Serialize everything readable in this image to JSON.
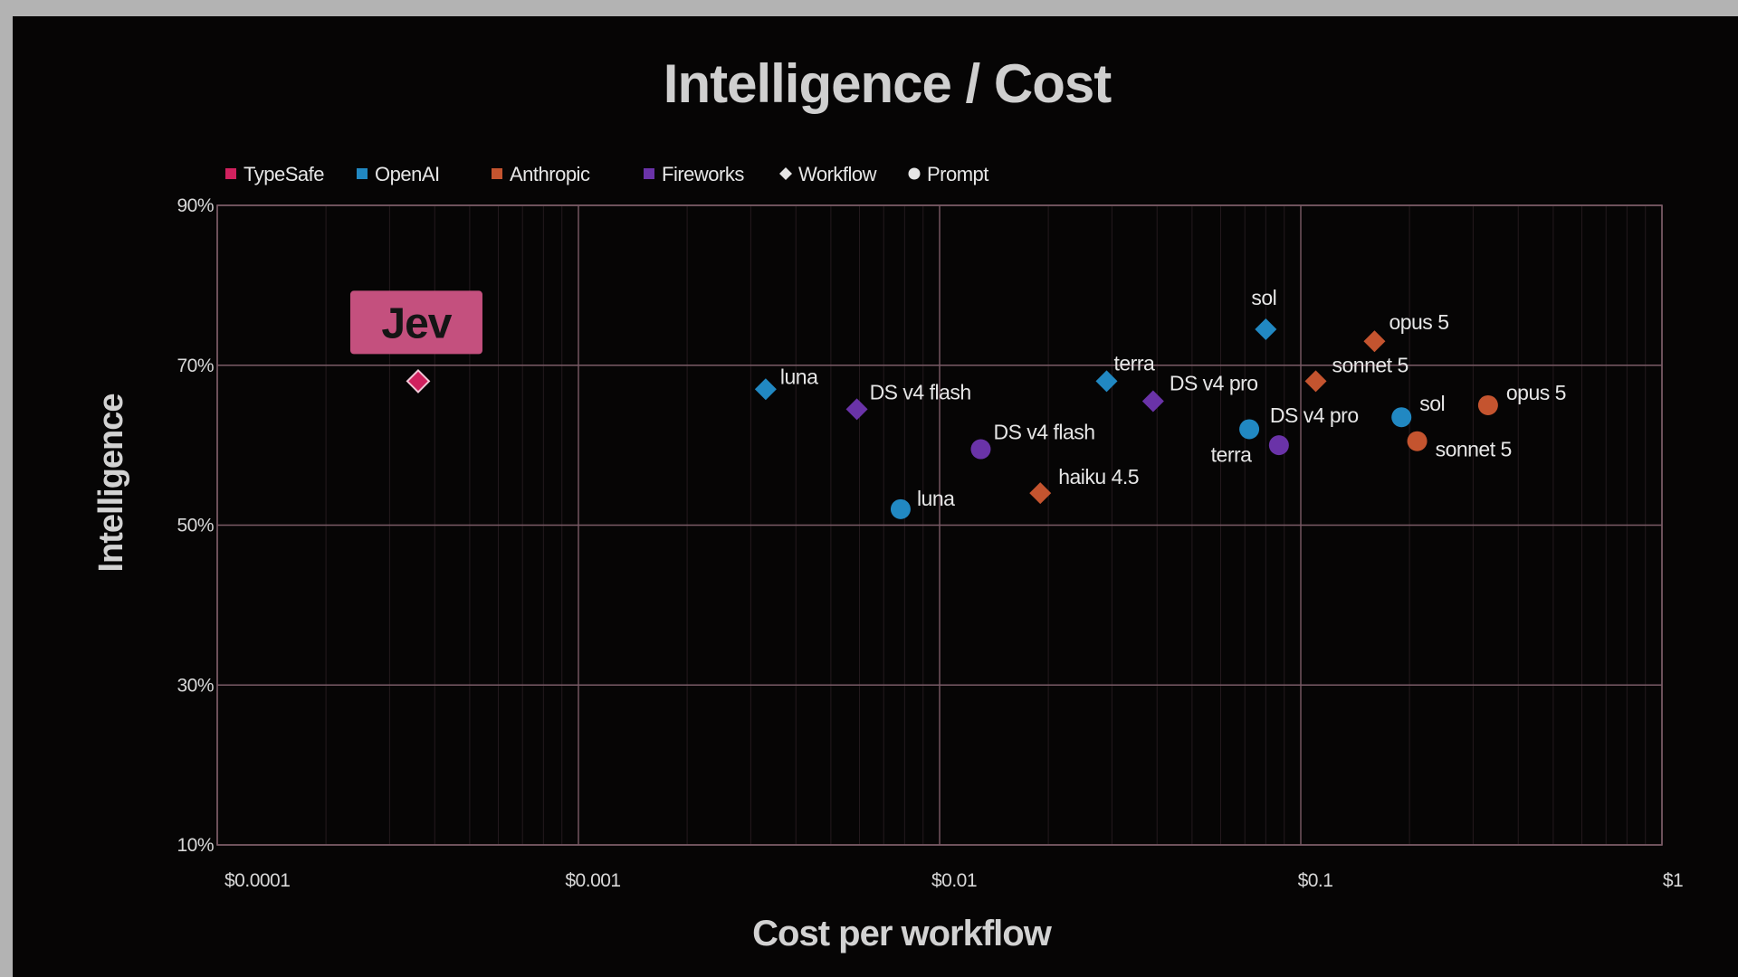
{
  "chart_data": {
    "type": "scatter",
    "title": "Intelligence / Cost",
    "xlabel": "Cost per workflow",
    "ylabel": "Intelligence",
    "x_scale": "log",
    "xlim": [
      0.0001,
      1
    ],
    "ylim": [
      10,
      90
    ],
    "x_ticks": [
      "$0.0001",
      "$0.001",
      "$0.01",
      "$0.1",
      "$1"
    ],
    "y_ticks": [
      "10%",
      "30%",
      "50%",
      "70%",
      "90%"
    ],
    "grid": true,
    "legend_position": "top-left",
    "legend": [
      {
        "label": "TypeSafe",
        "marker": "square",
        "color": "#d0215e"
      },
      {
        "label": "OpenAI",
        "marker": "square",
        "color": "#2188c2"
      },
      {
        "label": "Anthropic",
        "marker": "square",
        "color": "#c4542f"
      },
      {
        "label": "Fireworks",
        "marker": "square",
        "color": "#6a33a8"
      },
      {
        "label": "Workflow",
        "marker": "diamond",
        "color": "#e6e6e6"
      },
      {
        "label": "Prompt",
        "marker": "circle",
        "color": "#e6e6e6"
      }
    ],
    "colors": {
      "TypeSafe": "#d0215e",
      "OpenAI": "#2188c2",
      "Anthropic": "#c4542f",
      "Fireworks": "#6a33a8",
      "grid": "#7a5b66",
      "callout_bg": "#c4507e"
    },
    "points": [
      {
        "provider": "TypeSafe",
        "kind": "Workflow",
        "x": 0.00036,
        "y": 68,
        "label": ""
      },
      {
        "provider": "OpenAI",
        "kind": "Workflow",
        "x": 0.0033,
        "y": 67,
        "label": "luna"
      },
      {
        "provider": "Fireworks",
        "kind": "Workflow",
        "x": 0.0059,
        "y": 64.5,
        "label": "DS v4 flash"
      },
      {
        "provider": "OpenAI",
        "kind": "Prompt",
        "x": 0.0078,
        "y": 52,
        "label": "luna"
      },
      {
        "provider": "Fireworks",
        "kind": "Prompt",
        "x": 0.013,
        "y": 59.5,
        "label": "DS v4 flash"
      },
      {
        "provider": "Anthropic",
        "kind": "Workflow",
        "x": 0.019,
        "y": 54,
        "label": "haiku 4.5"
      },
      {
        "provider": "OpenAI",
        "kind": "Workflow",
        "x": 0.029,
        "y": 68,
        "label": "terra"
      },
      {
        "provider": "Fireworks",
        "kind": "Workflow",
        "x": 0.039,
        "y": 65.5,
        "label": "DS v4 pro"
      },
      {
        "provider": "OpenAI",
        "kind": "Prompt",
        "x": 0.072,
        "y": 62,
        "label": "terra"
      },
      {
        "provider": "Fireworks",
        "kind": "Prompt",
        "x": 0.087,
        "y": 60,
        "label": "DS v4 pro"
      },
      {
        "provider": "OpenAI",
        "kind": "Workflow",
        "x": 0.08,
        "y": 74.5,
        "label": "sol"
      },
      {
        "provider": "Anthropic",
        "kind": "Workflow",
        "x": 0.11,
        "y": 68,
        "label": "sonnet 5"
      },
      {
        "provider": "Anthropic",
        "kind": "Workflow",
        "x": 0.16,
        "y": 73,
        "label": "opus 5"
      },
      {
        "provider": "OpenAI",
        "kind": "Prompt",
        "x": 0.19,
        "y": 63.5,
        "label": "sol"
      },
      {
        "provider": "Anthropic",
        "kind": "Prompt",
        "x": 0.21,
        "y": 60.5,
        "label": "sonnet 5"
      },
      {
        "provider": "Anthropic",
        "kind": "Prompt",
        "x": 0.33,
        "y": 65,
        "label": "opus 5"
      }
    ],
    "callout": {
      "text": "Jev",
      "target_point": 0
    }
  }
}
